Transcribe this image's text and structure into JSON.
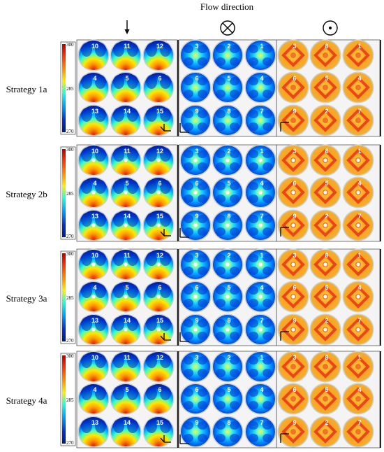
{
  "header": {
    "title": "Flow direction",
    "view_icons": [
      "down-arrow-icon",
      "cross-circle-icon",
      "dot-circle-icon"
    ]
  },
  "scale": {
    "max": "300",
    "mid": "285",
    "min": "270"
  },
  "rows": [
    {
      "label": "Strategy 1a",
      "dots": [
        false,
        false,
        false
      ]
    },
    {
      "label": "Strategy 2b",
      "dots": [
        true,
        true,
        true
      ]
    },
    {
      "label": "Strategy 3a",
      "dots": [
        true,
        true,
        true
      ]
    },
    {
      "label": "Strategy 4a",
      "dots": [
        false,
        false,
        false
      ]
    }
  ],
  "sensor_numbers": [
    [
      [
        "10",
        "11",
        "12"
      ],
      [
        "4",
        "5",
        "6"
      ],
      [
        "13",
        "14",
        "15"
      ]
    ],
    [
      [
        "3",
        "2",
        "1"
      ],
      [
        "6",
        "5",
        "4"
      ],
      [
        "9",
        "8",
        "7"
      ]
    ],
    [
      [
        "3",
        "8",
        "1"
      ],
      [
        "6",
        "5",
        "4"
      ],
      [
        "9",
        "2",
        "7"
      ]
    ]
  ],
  "colors": {
    "scale": [
      "#b00000",
      "#ff2a00",
      "#ff9900",
      "#ffee00",
      "#29ffd0",
      "#00a0ff",
      "#0030d0",
      "#001a80"
    ],
    "panel_border": "#444444",
    "separator": "#000000"
  }
}
